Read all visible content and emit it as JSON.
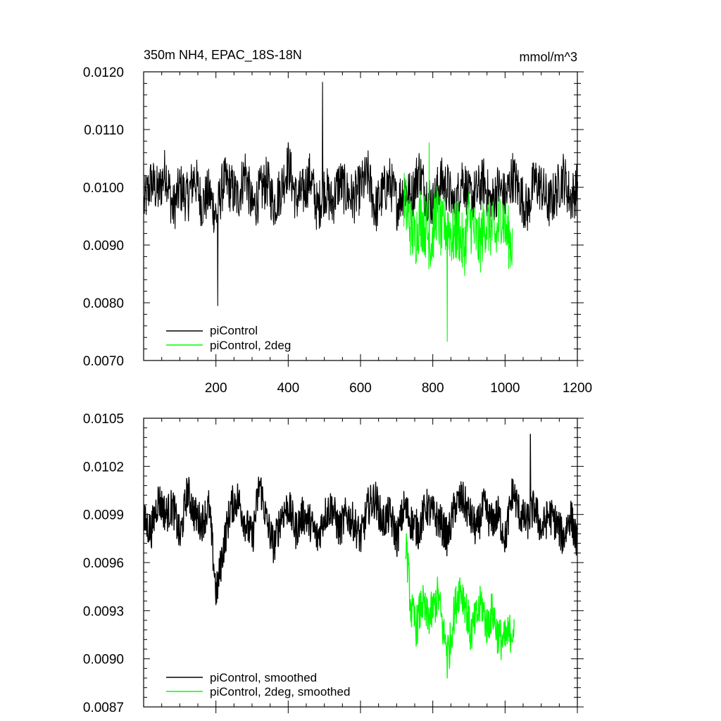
{
  "colors": {
    "piControl": "#000000",
    "piControl_2deg": "#00ff00",
    "axis": "#000000"
  },
  "chart_data": [
    {
      "type": "line",
      "title": "350m NH4, EPAC_18S-18N",
      "units": "mmol/m^3",
      "xlim": [
        0,
        1200
      ],
      "ylim": [
        0.007,
        0.012
      ],
      "x_ticks": [
        200,
        400,
        600,
        800,
        1000,
        1200
      ],
      "x_tick_labels": [
        "200",
        "400",
        "600",
        "800",
        "1000",
        "1200"
      ],
      "y_ticks": [
        0.007,
        0.008,
        0.009,
        0.01,
        0.011,
        0.012
      ],
      "y_tick_labels": [
        "0.0070",
        "0.0080",
        "0.0090",
        "0.0100",
        "0.0110",
        "0.0120"
      ],
      "legend_position": "bottom-left",
      "series": [
        {
          "name": "piControl",
          "color": "#000000",
          "x_start": 1,
          "x_step": 20,
          "values": [
            0.0097,
            0.0101,
            0.0099,
            0.0103,
            0.0096,
            0.01,
            0.0098,
            0.0102,
            0.0097,
            0.0099,
            0.0095,
            0.0101,
            0.01,
            0.0098,
            0.0103,
            0.0096,
            0.0099,
            0.0101,
            0.0097,
            0.01,
            0.0104,
            0.0098,
            0.0099,
            0.0102,
            0.0096,
            0.01,
            0.0097,
            0.0101,
            0.0099,
            0.0098,
            0.01,
            0.0102,
            0.0096,
            0.0099,
            0.0101,
            0.0097,
            0.01,
            0.0098,
            0.0103,
            0.0099,
            0.0097,
            0.0101,
            0.01,
            0.0096,
            0.0102,
            0.0098,
            0.0099,
            0.0101,
            0.0097,
            0.01,
            0.0098,
            0.0102,
            0.0099,
            0.0096,
            0.0101,
            0.01,
            0.0097,
            0.0099,
            0.0102,
            0.0098,
            0.01
          ],
          "max": {
            "x": 495,
            "y": 0.01182
          },
          "min": {
            "x": 205,
            "y": 0.00795
          }
        },
        {
          "name": "piControl, 2deg",
          "color": "#00ff00",
          "x_start": 720,
          "x_step": 15,
          "values": [
            0.0098,
            0.0094,
            0.0091,
            0.0095,
            0.0093,
            0.009,
            0.0096,
            0.0092,
            0.0094,
            0.0091,
            0.0093,
            0.0089,
            0.0095,
            0.0092,
            0.009,
            0.0094,
            0.0093,
            0.0091,
            0.0096,
            0.0092,
            0.009
          ],
          "max": {
            "x": 790,
            "y": 0.01077
          },
          "min": {
            "x": 840,
            "y": 0.00733
          }
        }
      ]
    },
    {
      "type": "line",
      "xlim": [
        0,
        1200
      ],
      "ylim": [
        0.0087,
        0.0105
      ],
      "x_ticks": [
        200,
        400,
        600,
        800,
        1000,
        1200
      ],
      "y_ticks": [
        0.0087,
        0.009,
        0.0093,
        0.0096,
        0.0099,
        0.0102,
        0.0105
      ],
      "y_tick_labels": [
        "0.0087",
        "0.0090",
        "0.0093",
        "0.0096",
        "0.0099",
        "0.0102",
        "0.0105"
      ],
      "legend_position": "bottom-left",
      "series": [
        {
          "name": "piControl, smoothed",
          "color": "#000000",
          "x_start": 1,
          "x_step": 20,
          "values": [
            0.00985,
            0.0098,
            0.01,
            0.0099,
            0.00995,
            0.00975,
            0.01005,
            0.0099,
            0.00985,
            0.00995,
            0.0094,
            0.0097,
            0.00995,
            0.01,
            0.00985,
            0.00975,
            0.0101,
            0.00985,
            0.0097,
            0.0099,
            0.00995,
            0.0098,
            0.0099,
            0.00985,
            0.00975,
            0.0099,
            0.00995,
            0.0098,
            0.0099,
            0.00985,
            0.00975,
            0.00995,
            0.01,
            0.00985,
            0.0099,
            0.00975,
            0.00995,
            0.00985,
            0.0098,
            0.00995,
            0.0099,
            0.00985,
            0.00975,
            0.00995,
            0.01,
            0.0099,
            0.0098,
            0.00995,
            0.00985,
            0.0099,
            0.00975,
            0.01005,
            0.0099,
            0.00985,
            0.00995,
            0.0098,
            0.0099,
            0.00985,
            0.00975,
            0.0099,
            0.0097
          ],
          "max": {
            "x": 1070,
            "y": 0.0104
          },
          "min": {
            "x": 202,
            "y": 0.00935
          }
        },
        {
          "name": "piControl, 2deg, smoothed",
          "color": "#00ff00",
          "x_start": 725,
          "x_step": 15,
          "values": [
            0.00975,
            0.0093,
            0.0092,
            0.00935,
            0.00925,
            0.0093,
            0.0094,
            0.00915,
            0.00905,
            0.0093,
            0.00945,
            0.00935,
            0.00915,
            0.00925,
            0.00935,
            0.0092,
            0.0093,
            0.00915,
            0.0091,
            0.00915,
            0.0092
          ],
          "max": {
            "x": 727,
            "y": 0.00978
          },
          "min": {
            "x": 840,
            "y": 0.00888
          }
        }
      ]
    }
  ]
}
